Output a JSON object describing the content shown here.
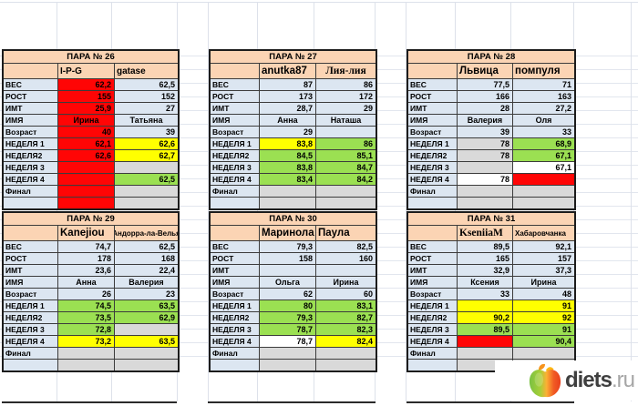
{
  "colors": {
    "header": "#FBD4B4",
    "blue": "#DCE6F1",
    "red": "#FF0505",
    "yellow": "#FFFF00",
    "green": "#9BE052",
    "gray": "#D9D9D9",
    "white": "#FFFFFF",
    "grid": "#dde1ea",
    "border": "#1c1c1c"
  },
  "row_labels": [
    "ВЕС",
    "РОСТ",
    "ИМТ",
    "ИМЯ",
    "Возраст",
    "НЕДЕЛЯ 1",
    "НЕДЕЛЯ2",
    "НЕДЕЛЯ 3",
    "НЕДЕЛЯ 4",
    "Финал",
    ""
  ],
  "tables": [
    {
      "title": "ПАРА № 26",
      "name1": {
        "text": "I-P-G",
        "font": "sans",
        "size": "md",
        "align": "left"
      },
      "name2": {
        "text": "gatase",
        "font": "sans",
        "size": "md",
        "align": "left"
      },
      "rows": [
        {
          "v1": "62,2",
          "c1": "red",
          "v2": "62,5",
          "c2": "blue"
        },
        {
          "v1": "155",
          "c1": "red",
          "v2": "152",
          "c2": "blue"
        },
        {
          "v1": "25,9",
          "c1": "red",
          "v2": "27",
          "c2": "blue"
        },
        {
          "v1": "Ирина",
          "c1": "red",
          "v2": "Татьяна",
          "c2": "blue",
          "align": "center"
        },
        {
          "v1": "40",
          "c1": "red",
          "v2": "39",
          "c2": "blue"
        },
        {
          "v1": "62,1",
          "c1": "red",
          "v2": "62,6",
          "c2": "yellow"
        },
        {
          "v1": "62,6",
          "c1": "red",
          "v2": "62,7",
          "c2": "yellow"
        },
        {
          "v1": "",
          "c1": "red",
          "v2": "",
          "c2": "gray"
        },
        {
          "v1": "",
          "c1": "red",
          "v2": "62,5",
          "c2": "green"
        },
        {
          "v1": "",
          "c1": "red",
          "v2": "",
          "c2": "gray"
        },
        {
          "v1": "",
          "c1": "red",
          "v2": "",
          "c2": "gray"
        }
      ]
    },
    {
      "title": "ПАРА № 27",
      "name1": {
        "text": "anutka87",
        "font": "sans",
        "size": "lg",
        "align": "left"
      },
      "name2": {
        "text": "Лия-лия",
        "font": "serif",
        "size": "lg",
        "align": "center"
      },
      "rows": [
        {
          "v1": "87",
          "c1": "blue",
          "v2": "86",
          "c2": "blue"
        },
        {
          "v1": "173",
          "c1": "blue",
          "v2": "172",
          "c2": "blue"
        },
        {
          "v1": "28,7",
          "c1": "blue",
          "v2": "29",
          "c2": "blue"
        },
        {
          "v1": "Анна",
          "c1": "blue",
          "v2": "Наташа",
          "c2": "blue",
          "align": "center"
        },
        {
          "v1": "29",
          "c1": "blue",
          "v2": "",
          "c2": "blue"
        },
        {
          "v1": "83,8",
          "c1": "yellow",
          "v2": "86",
          "c2": "green"
        },
        {
          "v1": "84,5",
          "c1": "green",
          "v2": "85,1",
          "c2": "green"
        },
        {
          "v1": "83,8",
          "c1": "green",
          "v2": "84,7",
          "c2": "green"
        },
        {
          "v1": "83,4",
          "c1": "green",
          "v2": "84,2",
          "c2": "green"
        },
        {
          "v1": "",
          "c1": "gray",
          "v2": "",
          "c2": "gray"
        },
        {
          "v1": "",
          "c1": "gray",
          "v2": "",
          "c2": "gray"
        }
      ]
    },
    {
      "title": "ПАРА № 28",
      "name1": {
        "text": "Львица",
        "font": "sans",
        "size": "lg",
        "align": "left"
      },
      "name2": {
        "text": "помпуля",
        "font": "sans",
        "size": "lg",
        "align": "left"
      },
      "rows": [
        {
          "v1": "77,5",
          "c1": "blue",
          "v2": "71",
          "c2": "blue"
        },
        {
          "v1": "166",
          "c1": "blue",
          "v2": "163",
          "c2": "blue"
        },
        {
          "v1": "28",
          "c1": "blue",
          "v2": "27,2",
          "c2": "blue"
        },
        {
          "v1": "Валерия",
          "c1": "blue",
          "v2": "Оля",
          "c2": "blue",
          "align": "center"
        },
        {
          "v1": "39",
          "c1": "blue",
          "v2": "33",
          "c2": "blue"
        },
        {
          "v1": "78",
          "c1": "gray",
          "v2": "68,9",
          "c2": "green"
        },
        {
          "v1": "78",
          "c1": "gray",
          "v2": "67,1",
          "c2": "green"
        },
        {
          "v1": "",
          "c1": "gray",
          "v2": "67,1",
          "c2": "white"
        },
        {
          "v1": "78",
          "c1": "white",
          "v2": "",
          "c2": "red"
        },
        {
          "v1": "",
          "c1": "gray",
          "v2": "",
          "c2": "gray"
        },
        {
          "v1": "",
          "c1": "gray",
          "v2": "",
          "c2": "gray"
        }
      ]
    },
    {
      "title": "ПАРА № 29",
      "name1": {
        "text": "Kanejiou",
        "font": "sans",
        "size": "lg",
        "align": "left"
      },
      "name2": {
        "text": "Андорра-ла-Велья",
        "font": "sans",
        "size": "sm",
        "align": "center"
      },
      "rows": [
        {
          "v1": "74,7",
          "c1": "blue",
          "v2": "62,5",
          "c2": "blue"
        },
        {
          "v1": "178",
          "c1": "blue",
          "v2": "168",
          "c2": "blue"
        },
        {
          "v1": "23,6",
          "c1": "blue",
          "v2": "22,4",
          "c2": "blue"
        },
        {
          "v1": "Анна",
          "c1": "blue",
          "v2": "Валерия",
          "c2": "blue",
          "align": "center"
        },
        {
          "v1": "26",
          "c1": "blue",
          "v2": "23",
          "c2": "blue"
        },
        {
          "v1": "74,5",
          "c1": "green",
          "v2": "63,5",
          "c2": "green"
        },
        {
          "v1": "73,5",
          "c1": "green",
          "v2": "62,9",
          "c2": "green"
        },
        {
          "v1": "72,8",
          "c1": "green",
          "v2": "",
          "c2": "gray"
        },
        {
          "v1": "73,2",
          "c1": "yellow",
          "v2": "63,5",
          "c2": "yellow"
        },
        {
          "v1": "",
          "c1": "gray",
          "v2": "",
          "c2": "gray"
        },
        {
          "v1": "",
          "c1": "gray",
          "v2": "",
          "c2": "gray"
        }
      ]
    },
    {
      "title": "ПАРА № 30",
      "name1": {
        "text": "Маринола",
        "font": "sans",
        "size": "lg",
        "align": "left"
      },
      "name2": {
        "text": "Паула",
        "font": "sans",
        "size": "lg",
        "align": "left"
      },
      "rows": [
        {
          "v1": "79,3",
          "c1": "blue",
          "v2": "82,5",
          "c2": "blue"
        },
        {
          "v1": "158",
          "c1": "blue",
          "v2": "160",
          "c2": "blue"
        },
        {
          "v1": "",
          "c1": "blue",
          "v2": "",
          "c2": "blue"
        },
        {
          "v1": "Ольга",
          "c1": "blue",
          "v2": "Ирина",
          "c2": "blue",
          "align": "center"
        },
        {
          "v1": "62",
          "c1": "blue",
          "v2": "60",
          "c2": "blue"
        },
        {
          "v1": "80",
          "c1": "green",
          "v2": "83,1",
          "c2": "green"
        },
        {
          "v1": "79,3",
          "c1": "green",
          "v2": "82,7",
          "c2": "green"
        },
        {
          "v1": "78,7",
          "c1": "green",
          "v2": "82,3",
          "c2": "green"
        },
        {
          "v1": "78,7",
          "c1": "white",
          "v2": "82,4",
          "c2": "yellow"
        },
        {
          "v1": "",
          "c1": "gray",
          "v2": "",
          "c2": "gray"
        },
        {
          "v1": "",
          "c1": "gray",
          "v2": "",
          "c2": "gray"
        }
      ]
    },
    {
      "title": "ПАРА № 31",
      "name1": {
        "text": "KseniiaM",
        "font": "serif",
        "size": "lg",
        "align": "left"
      },
      "name2": {
        "text": "Хабаровчанка",
        "font": "sans",
        "size": "sm",
        "align": "left"
      },
      "rows": [
        {
          "v1": "89,5",
          "c1": "blue",
          "v2": "92,1",
          "c2": "blue"
        },
        {
          "v1": "165",
          "c1": "blue",
          "v2": "157",
          "c2": "blue"
        },
        {
          "v1": "32,9",
          "c1": "blue",
          "v2": "37,3",
          "c2": "blue"
        },
        {
          "v1": "Ксения",
          "c1": "blue",
          "v2": "Ирина",
          "c2": "blue",
          "align": "center"
        },
        {
          "v1": "33",
          "c1": "blue",
          "v2": "48",
          "c2": "blue"
        },
        {
          "v1": "",
          "c1": "yellow",
          "v2": "91",
          "c2": "yellow"
        },
        {
          "v1": "90,2",
          "c1": "yellow",
          "v2": "92",
          "c2": "yellow"
        },
        {
          "v1": "89,5",
          "c1": "green",
          "v2": "91",
          "c2": "green"
        },
        {
          "v1": "",
          "c1": "red",
          "v2": "90,4",
          "c2": "green"
        },
        {
          "v1": "",
          "c1": "gray",
          "v2": "",
          "c2": "gray"
        },
        {
          "v1": "",
          "c1": "gray",
          "v2": "",
          "c2": "gray"
        }
      ]
    }
  ],
  "logo": {
    "text_primary": "diets",
    "text_secondary": ".ru",
    "primary_color": "#3f3f3f",
    "secondary_color": "#a6a6a6",
    "apple_green": "#7AC143",
    "apple_yellow": "#FBB034",
    "apple_red": "#E8401C",
    "leaf_orange": "#F7941D"
  }
}
